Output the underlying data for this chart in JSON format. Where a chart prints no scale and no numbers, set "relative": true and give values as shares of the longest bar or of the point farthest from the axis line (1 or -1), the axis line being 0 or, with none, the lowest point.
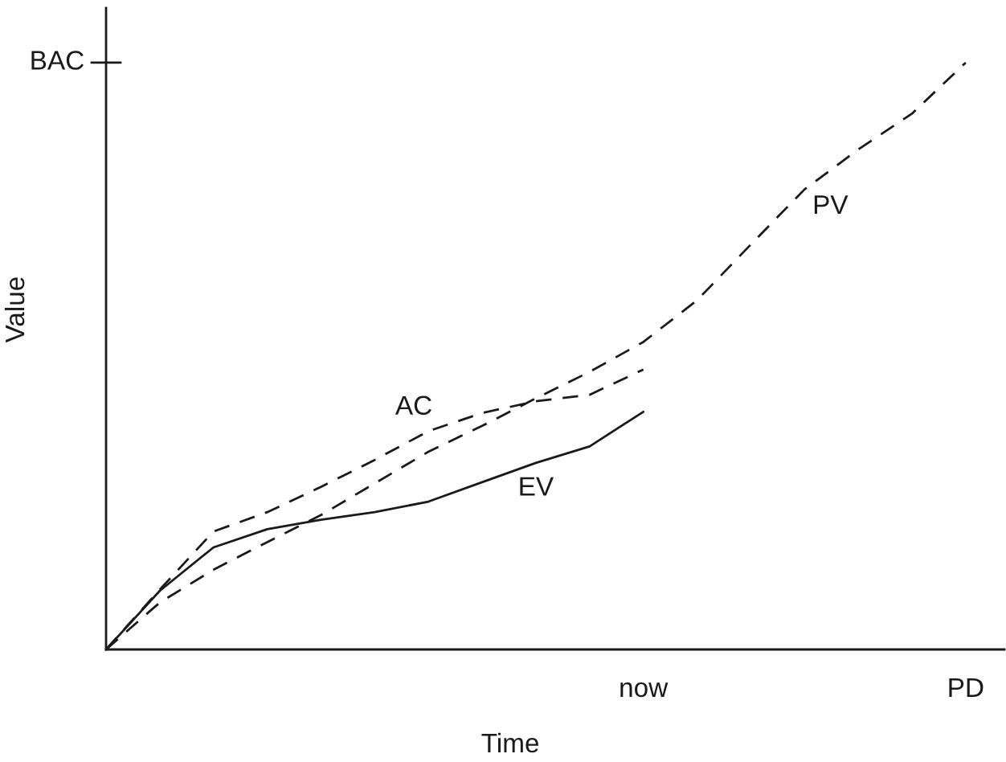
{
  "chart_data": {
    "type": "line",
    "relative": true,
    "xlabel": "Time",
    "ylabel": "Value",
    "categories": [
      null,
      null,
      null,
      null,
      null,
      null,
      null,
      null,
      null,
      null,
      "now",
      null,
      null,
      null,
      null,
      null,
      "PD"
    ],
    "grid": false,
    "legend": false,
    "marker": "none",
    "series": [
      {
        "name": "PV",
        "color": "#1a1a1a",
        "line_style": "dashed",
        "values": [
          0,
          0.08,
          0.136,
          0.183,
          0.229,
          0.283,
          0.337,
          0.381,
          0.428,
          0.473,
          0.524,
          0.595,
          0.69,
          0.784,
          0.852,
          0.913,
          1.0
        ]
      },
      {
        "name": "EV",
        "color": "#1a1a1a",
        "line_style": "solid",
        "values": [
          0,
          0.1,
          0.174,
          0.205,
          0.221,
          0.234,
          0.252,
          0.285,
          0.318,
          0.346,
          0.405,
          null,
          null,
          null,
          null,
          null,
          null
        ]
      },
      {
        "name": "AC",
        "color": "#1a1a1a",
        "line_style": "dashed",
        "values": [
          0,
          0.102,
          0.201,
          0.234,
          0.277,
          0.323,
          0.372,
          0.403,
          0.423,
          0.434,
          0.477,
          null,
          null,
          null,
          null,
          null,
          null
        ]
      }
    ],
    "annotations": [
      "BAC"
    ]
  }
}
